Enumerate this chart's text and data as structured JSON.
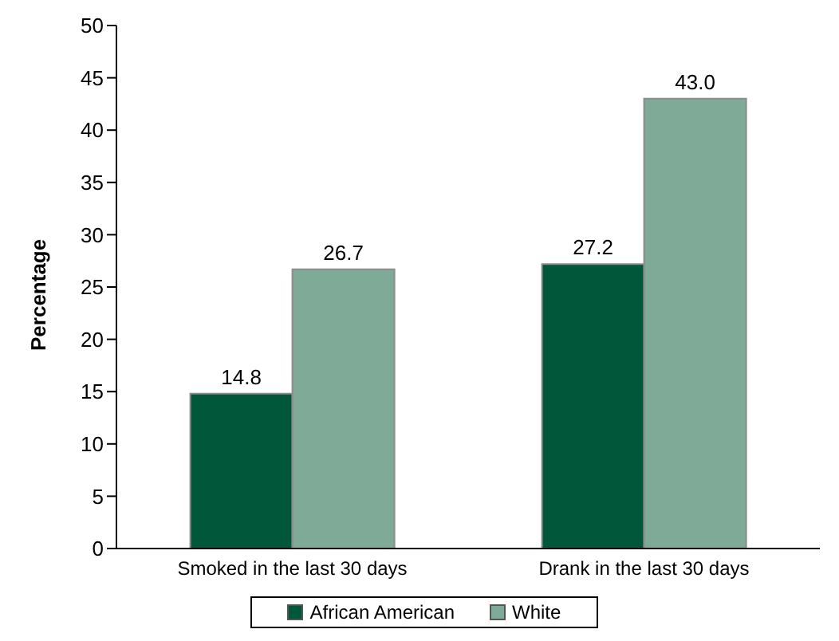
{
  "chart_data": {
    "type": "bar",
    "ylabel": "Percentage",
    "categories": [
      "Smoked in the last 30 days",
      "Drank in the last 30 days"
    ],
    "series": [
      {
        "name": "African American",
        "color": "#00573a",
        "values": [
          14.8,
          27.2
        ],
        "value_labels": [
          "14.8",
          "27.2"
        ]
      },
      {
        "name": "White",
        "color": "#80aa98",
        "values": [
          26.7,
          43.0
        ],
        "value_labels": [
          "26.7",
          "43.0"
        ]
      }
    ],
    "ylim": [
      0,
      50
    ],
    "yticks": [
      0,
      5,
      10,
      15,
      20,
      25,
      30,
      35,
      40,
      45,
      50
    ],
    "grid": false,
    "legend": "bottom"
  }
}
